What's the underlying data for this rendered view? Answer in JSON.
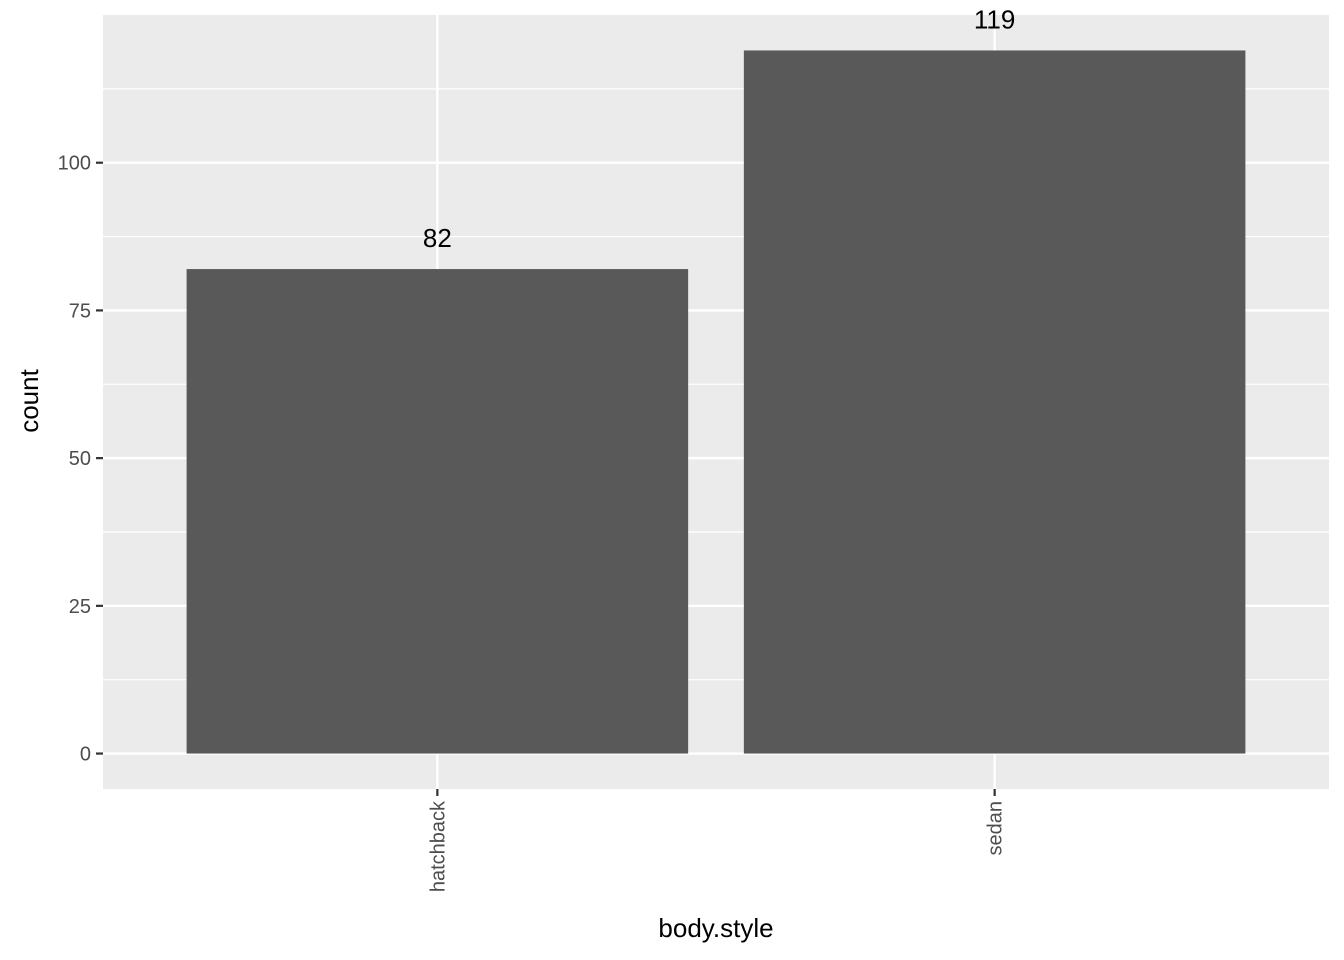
{
  "chart_data": {
    "type": "bar",
    "categories": [
      "hatchback",
      "sedan"
    ],
    "values": [
      82,
      119
    ],
    "data_labels": [
      "82",
      "119"
    ],
    "xlabel": "body.style",
    "ylabel": "count",
    "ylim": [
      -6,
      125
    ],
    "yticks": [
      0,
      25,
      50,
      75,
      100
    ],
    "ytick_labels": [
      "0",
      "25",
      "50",
      "75",
      "100"
    ],
    "grid": true,
    "colors": {
      "panel": "#ebebeb",
      "grid": "#ffffff",
      "bar": "#595959",
      "tick_text": "#4d4d4d",
      "tick_mark": "#333333"
    }
  }
}
